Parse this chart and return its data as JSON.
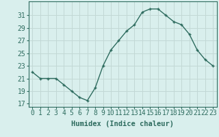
{
  "x": [
    0,
    1,
    2,
    3,
    4,
    5,
    6,
    7,
    8,
    9,
    10,
    11,
    12,
    13,
    14,
    15,
    16,
    17,
    18,
    19,
    20,
    21,
    22,
    23
  ],
  "y": [
    22.0,
    21.0,
    21.0,
    21.0,
    20.0,
    19.0,
    18.0,
    17.5,
    19.5,
    23.0,
    25.5,
    27.0,
    28.5,
    29.5,
    31.5,
    32.0,
    32.0,
    31.0,
    30.0,
    29.5,
    28.0,
    25.5,
    24.0,
    23.0
  ],
  "line_color": "#2d6b5e",
  "marker": "+",
  "bg_color": "#d9efed",
  "grid_color": "#c2d8d5",
  "xlabel": "Humidex (Indice chaleur)",
  "ylabel_ticks": [
    17,
    19,
    21,
    23,
    25,
    27,
    29,
    31
  ],
  "xlim": [
    -0.5,
    23.5
  ],
  "ylim": [
    16.5,
    33.2
  ],
  "xlabel_fontsize": 7.5,
  "tick_fontsize": 7
}
